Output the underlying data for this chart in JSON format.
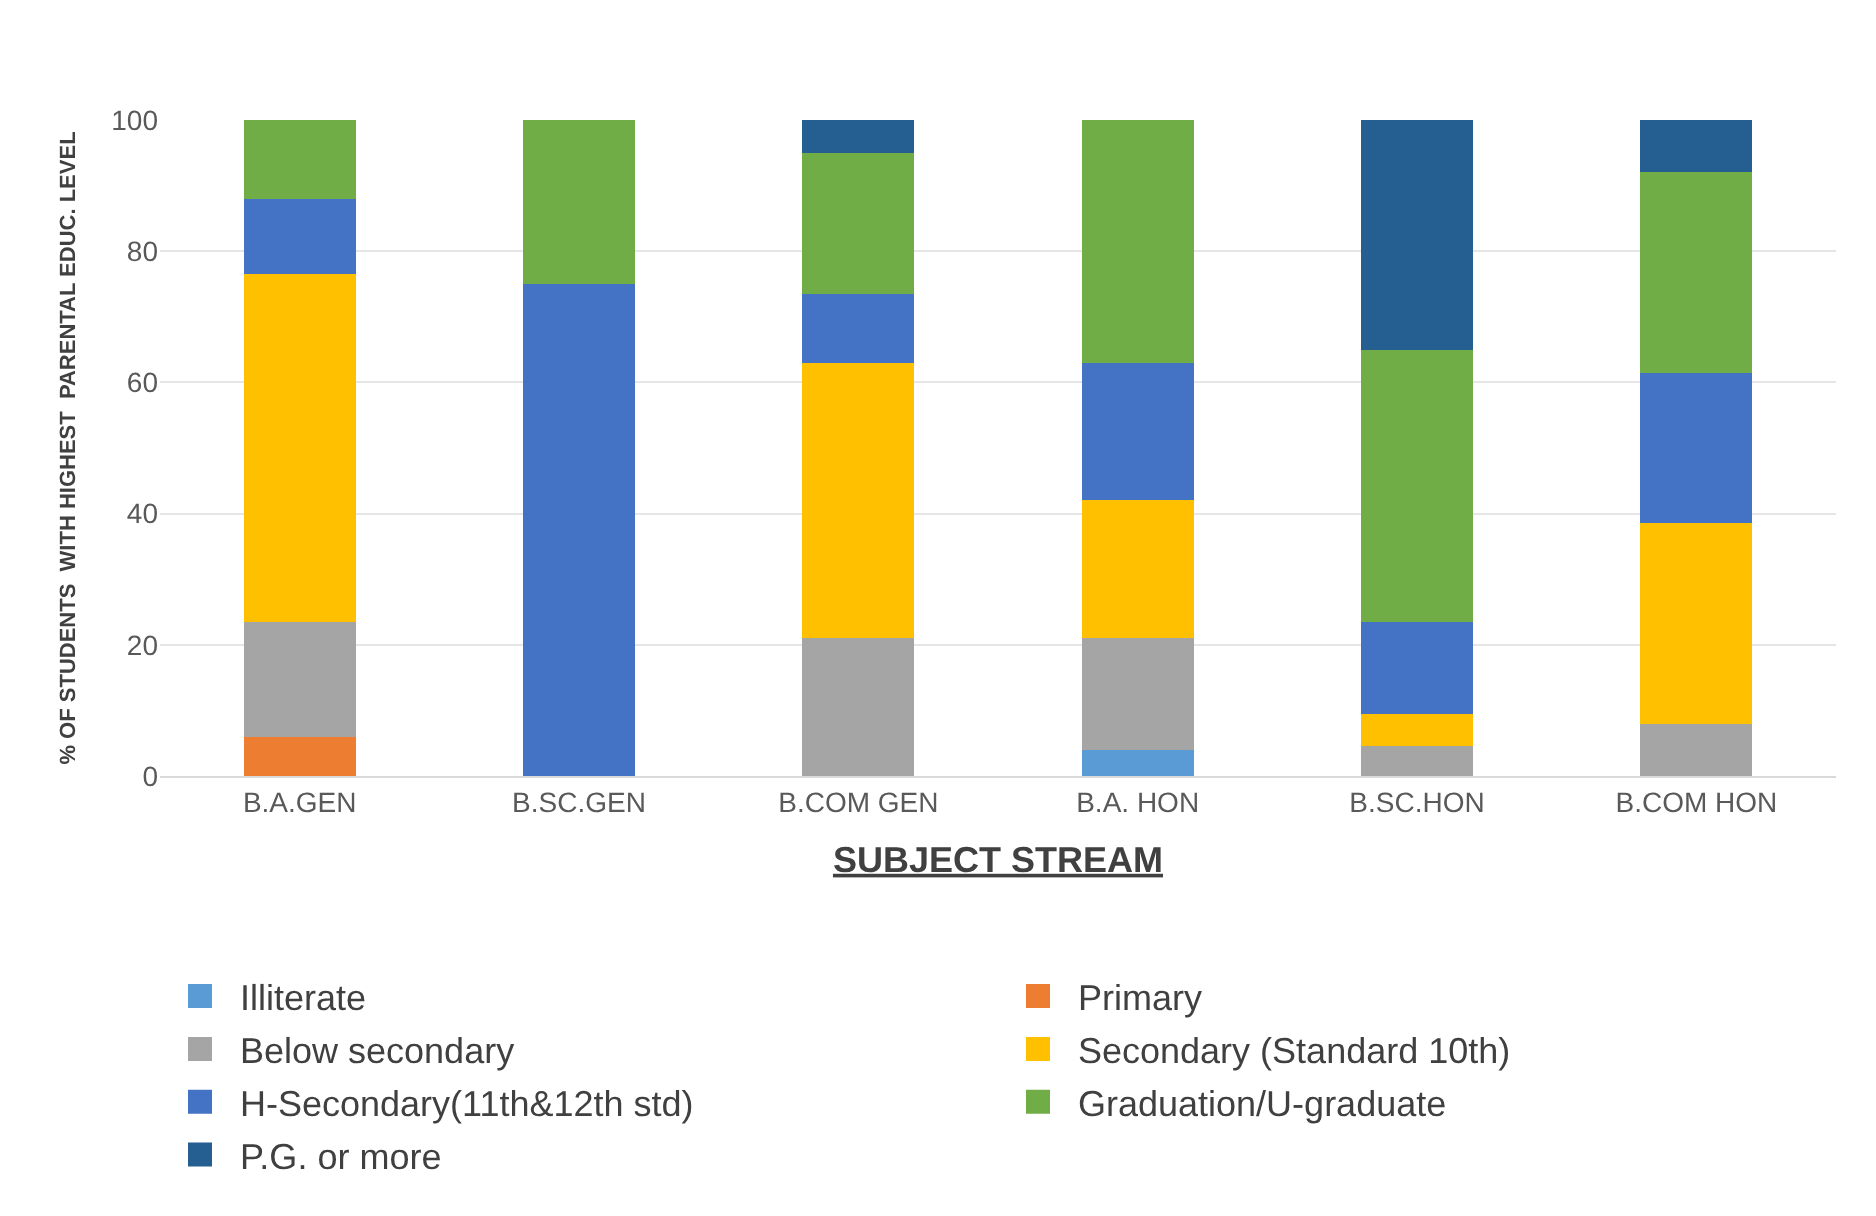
{
  "chart_data": {
    "type": "bar",
    "stacked": true,
    "xlabel": "SUBJECT STREAM",
    "ylabel": "% OF STUDENTS  WITH HIGHEST  PARENTAL EDUC. LEVEL",
    "categories": [
      "B.A.GEN",
      "B.SC.GEN",
      "B.COM GEN",
      "B.A. HON",
      "B.SC.HON",
      "B.COM HON"
    ],
    "series": [
      {
        "name": "Illiterate",
        "color": "#5b9bd5",
        "values": [
          0,
          0,
          0,
          4,
          0,
          0
        ]
      },
      {
        "name": "Primary",
        "color": "#ed7d31",
        "values": [
          6,
          0,
          0,
          0,
          0,
          0
        ]
      },
      {
        "name": "Below secondary",
        "color": "#a5a5a5",
        "values": [
          17.5,
          0,
          21,
          17,
          4.5,
          8
        ]
      },
      {
        "name": "Secondary (Standard 10th)",
        "color": "#ffc000",
        "values": [
          53,
          0,
          42,
          21,
          5,
          30.5
        ]
      },
      {
        "name": "H-Secondary(11th&12th std)",
        "color": "#4472c4",
        "values": [
          11.5,
          75,
          10.5,
          21,
          14,
          23
        ]
      },
      {
        "name": "Graduation/U-graduate",
        "color": "#70ad47",
        "values": [
          12,
          25,
          21.5,
          37,
          41.5,
          30.5
        ]
      },
      {
        "name": "P.G. or more",
        "color": "#255e91",
        "values": [
          0,
          0,
          5,
          0,
          35,
          8
        ]
      }
    ],
    "ylim": [
      0,
      100
    ],
    "yticks": [
      0,
      20,
      40,
      60,
      80,
      100
    ],
    "grid": "y",
    "legend": "bottom"
  }
}
